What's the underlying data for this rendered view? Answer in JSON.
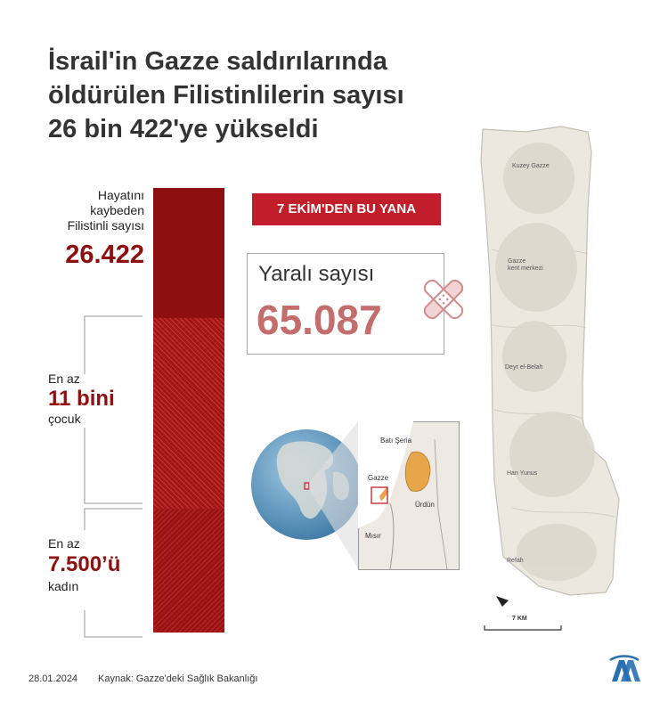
{
  "title_lines": [
    "İsrail'in Gazze saldırılarında",
    "öldürülen Filistinlilerin sayısı",
    "26 bin 422'ye yükseldi"
  ],
  "killed": {
    "label_lines": [
      "Hayatını",
      "kaybeden",
      "Filistinli sayısı"
    ],
    "value": "26.422"
  },
  "children": {
    "prefix": "En az",
    "value": "11 bini",
    "suffix": "çocuk"
  },
  "women": {
    "prefix": "En az",
    "value": "7.500’ü",
    "suffix": "kadın"
  },
  "badge": "7 EKİM'DEN  BU YANA",
  "wounded": {
    "label": "Yaralı sayısı",
    "value": "65.087"
  },
  "locator": {
    "west_bank": "Batı Şeria",
    "gaza": "Gazze",
    "jordan": "Ürdün",
    "egypt": "Mısır"
  },
  "map_labels": {
    "north": "Kuzey Gazze",
    "city": [
      "Gazze",
      "kent merkezi"
    ],
    "deir": "Deyr el-Belah",
    "khan": "Han Yunus",
    "rafah": "Refah",
    "scale": "7 KM"
  },
  "footer": {
    "date": "28.01.2024",
    "source": "Kaynak: Gazze'deki Sağlık Bakanlığı"
  },
  "colors": {
    "dark_red": "#8e0f0f",
    "badge_red": "#c11d2a",
    "wounded_red": "#c46d6d",
    "map_fill": "#ece8e0",
    "palestine": "#e8a64a"
  },
  "icons": [
    "bandage-icon",
    "north-arrow-icon",
    "aa-logo-icon"
  ]
}
